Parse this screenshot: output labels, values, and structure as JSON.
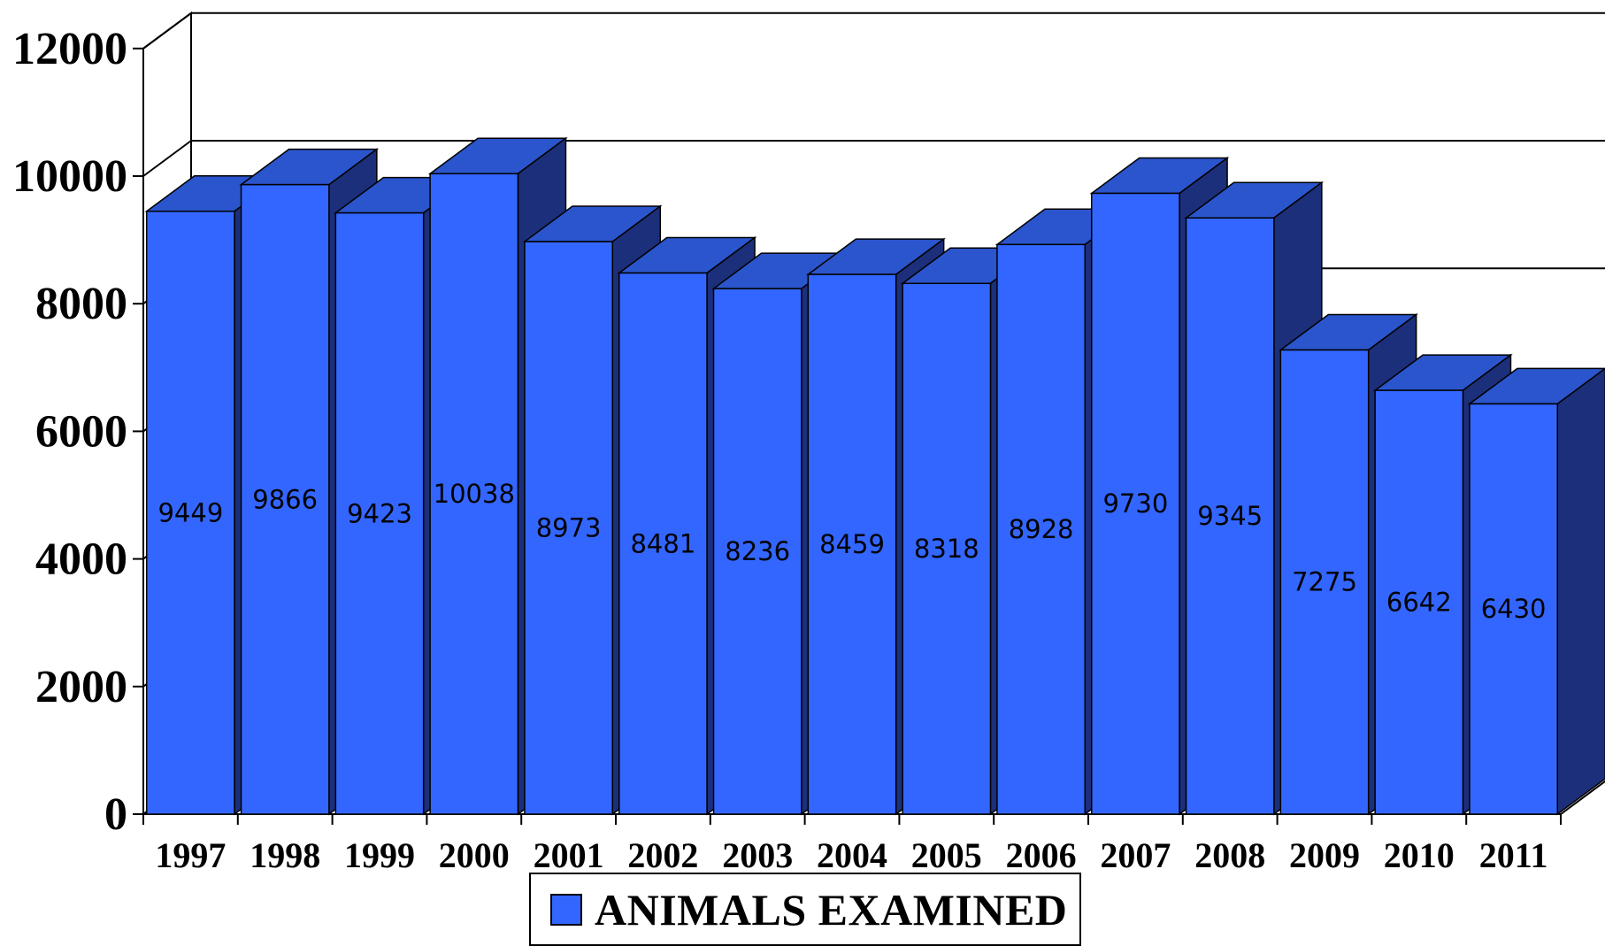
{
  "chart_data": {
    "type": "bar",
    "style": "3d",
    "categories": [
      "1997",
      "1998",
      "1999",
      "2000",
      "2001",
      "2002",
      "2003",
      "2004",
      "2005",
      "2006",
      "2007",
      "2008",
      "2009",
      "2010",
      "2011"
    ],
    "series": [
      {
        "name": "ANIMALS EXAMINED",
        "values": [
          9449,
          9866,
          9423,
          10038,
          8973,
          8481,
          8236,
          8459,
          8318,
          8928,
          9730,
          9345,
          7275,
          6642,
          6430
        ]
      }
    ],
    "value_labels": [
      "9449",
      "9866",
      "9423",
      "10038",
      "8973",
      "8481",
      "8236",
      "8459",
      "8318",
      "8928",
      "9730",
      "9345",
      "7275",
      "6642",
      "6430"
    ],
    "yticks": [
      "0",
      "2000",
      "4000",
      "6000",
      "8000",
      "10000",
      "12000"
    ],
    "ylim": [
      0,
      12000
    ],
    "grid": true,
    "legend_position": "bottom-center",
    "colors": {
      "bar_front": "#3366ff",
      "bar_top": "#2a55cc",
      "bar_side": "#1c2f7a",
      "outline": "#000000"
    }
  },
  "legend": {
    "label": "ANIMALS EXAMINED"
  }
}
